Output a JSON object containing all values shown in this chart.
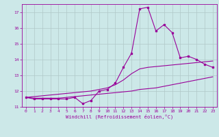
{
  "x": [
    0,
    1,
    2,
    3,
    4,
    5,
    6,
    7,
    8,
    9,
    10,
    11,
    12,
    13,
    14,
    15,
    16,
    17,
    18,
    19,
    20,
    21,
    22,
    23
  ],
  "y_main": [
    11.6,
    11.5,
    11.5,
    11.5,
    11.5,
    11.5,
    11.6,
    11.2,
    11.4,
    12.0,
    12.1,
    12.5,
    13.5,
    14.4,
    17.2,
    17.3,
    15.8,
    16.2,
    15.7,
    14.1,
    14.2,
    14.0,
    13.7,
    13.5
  ],
  "y_low": [
    11.6,
    11.55,
    11.55,
    11.55,
    11.55,
    11.6,
    11.65,
    11.7,
    11.75,
    11.8,
    11.85,
    11.9,
    11.95,
    12.0,
    12.1,
    12.15,
    12.2,
    12.3,
    12.4,
    12.5,
    12.6,
    12.7,
    12.8,
    12.9
  ],
  "y_high": [
    11.6,
    11.65,
    11.7,
    11.75,
    11.8,
    11.85,
    11.9,
    11.95,
    12.0,
    12.1,
    12.2,
    12.4,
    12.7,
    13.1,
    13.4,
    13.5,
    13.55,
    13.6,
    13.65,
    13.7,
    13.75,
    13.8,
    13.85,
    13.9
  ],
  "line_color": "#990099",
  "bg_color": "#cce8e8",
  "grid_color": "#b0c8c8",
  "xlabel": "Windchill (Refroidissement éolien,°C)",
  "ylim": [
    11.0,
    17.5
  ],
  "xlim_min": -0.5,
  "xlim_max": 23.5,
  "yticks": [
    11,
    12,
    13,
    14,
    15,
    16,
    17
  ],
  "xticks": [
    0,
    1,
    2,
    3,
    4,
    5,
    6,
    7,
    8,
    9,
    10,
    11,
    12,
    13,
    14,
    15,
    16,
    17,
    18,
    19,
    20,
    21,
    22,
    23
  ]
}
